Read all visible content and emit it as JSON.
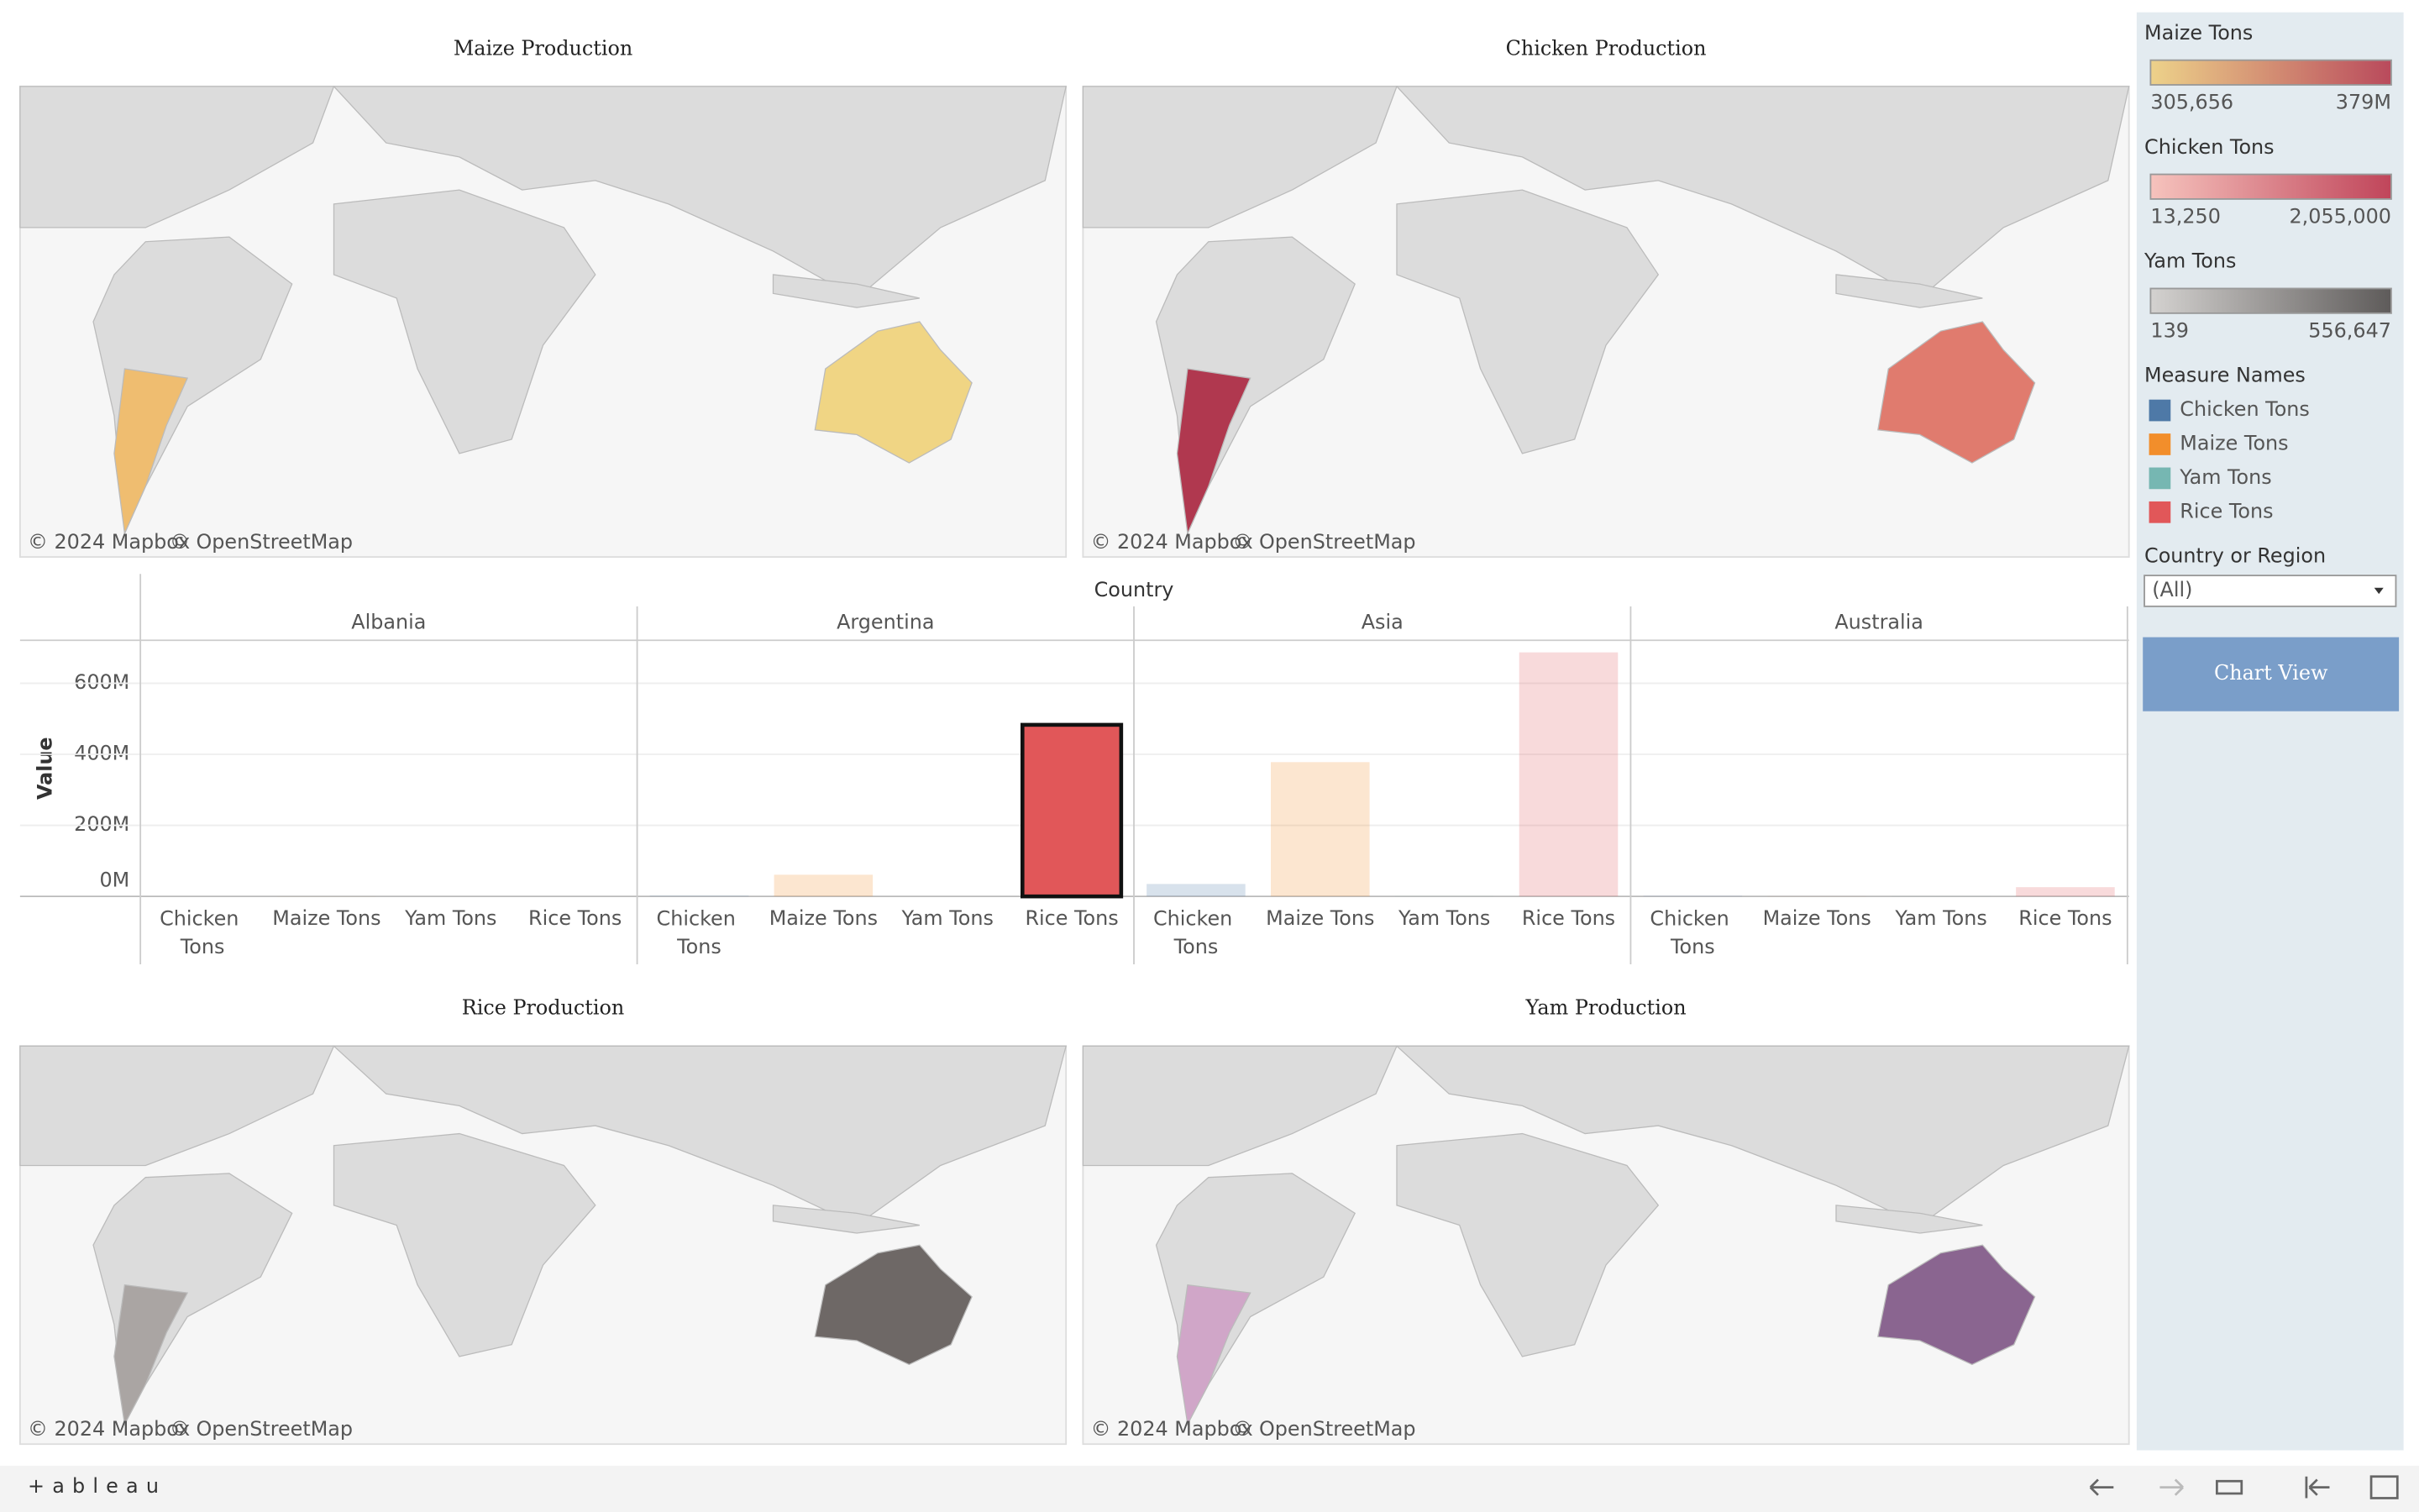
{
  "maps": [
    {
      "title": "Maize Production",
      "attribution": [
        "© 2024 Mapbox",
        "© OpenStreetMap"
      ],
      "fills": [
        "#efbd70",
        "#f0d584"
      ]
    },
    {
      "title": "Chicken Production",
      "attribution": [
        "© 2024 Mapbox",
        "© OpenStreetMap"
      ],
      "fills": [
        "#b0384f",
        "#e07b6e"
      ]
    },
    {
      "title": "Rice Production",
      "attribution": [
        "© 2024 Mapbox",
        "© OpenStreetMap"
      ],
      "fills": [
        "#aaa5a3",
        "#6e6866"
      ]
    },
    {
      "title": "Yam Production",
      "attribution": [
        "© 2024 Mapbox",
        "© OpenStreetMap"
      ],
      "fills": [
        "#d0a6c8",
        "#8a6590"
      ]
    }
  ],
  "chart_data": {
    "type": "bar",
    "title": "Country",
    "y_label": "Value",
    "categories": [
      "Chicken Tons",
      "Maize Tons",
      "Yam Tons",
      "Rice Tons"
    ],
    "colors": [
      "#4e79a7",
      "#f28e2b",
      "#76b7b2",
      "#e15759"
    ],
    "facets": [
      {
        "name": "Albania",
        "values": [
          13250,
          305656,
          139,
          0
        ]
      },
      {
        "name": "Argentina",
        "values": [
          2055000,
          61000000,
          0,
          483000000
        ]
      },
      {
        "name": "Asia",
        "values": [
          35000000,
          378000000,
          1000000,
          687000000
        ]
      },
      {
        "name": "Australia",
        "values": [
          1500000,
          400000,
          556647,
          26000000
        ]
      }
    ],
    "highlight": [
      1,
      3
    ],
    "ylim": [
      0,
      721000000
    ],
    "yticks": [
      {
        "value": 0,
        "label": "0M"
      },
      {
        "value": 200000000,
        "label": "200M"
      },
      {
        "value": 400000000,
        "label": "400M"
      },
      {
        "value": 600000000,
        "label": "600M"
      }
    ],
    "grid": true
  },
  "sidebar": {
    "legends": [
      {
        "title": "Maize Tons",
        "min": "305,656",
        "max": "379M",
        "colors": [
          "#edd28a",
          "#b94a5c"
        ]
      },
      {
        "title": "Chicken Tons",
        "min": "13,250",
        "max": "2,055,000",
        "colors": [
          "#f6c3bd",
          "#c0455a"
        ]
      },
      {
        "title": "Yam Tons",
        "min": "139",
        "max": "556,647",
        "colors": [
          "#d4d2d0",
          "#5e5b5a"
        ]
      }
    ],
    "measure_title": "Measure Names",
    "filter": {
      "title": "Country or Region",
      "value": "(All)"
    },
    "button": "Chart View"
  },
  "footer": {
    "logo": "+ableau"
  }
}
